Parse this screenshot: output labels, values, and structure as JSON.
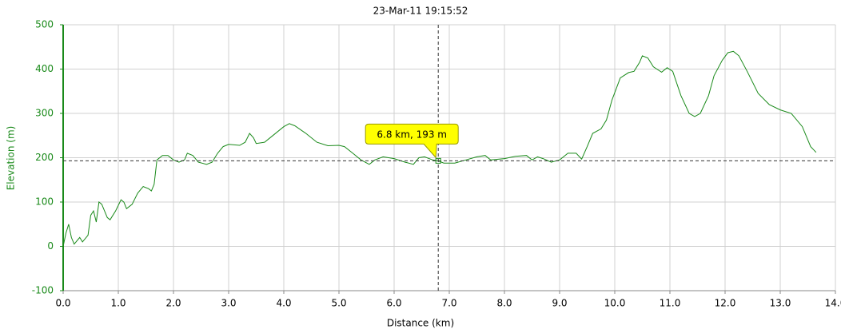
{
  "chart_data": {
    "type": "line",
    "title": "23-Mar-11 19:15:52",
    "x_label": "Distance (km)",
    "y_label": "Elevation (m)",
    "x": [
      0.0,
      0.05,
      0.1,
      0.15,
      0.2,
      0.3,
      0.35,
      0.45,
      0.5,
      0.55,
      0.6,
      0.65,
      0.7,
      0.8,
      0.85,
      0.95,
      1.05,
      1.1,
      1.15,
      1.25,
      1.35,
      1.45,
      1.55,
      1.6,
      1.65,
      1.7,
      1.8,
      1.9,
      2.0,
      2.1,
      2.2,
      2.25,
      2.35,
      2.45,
      2.6,
      2.7,
      2.8,
      2.9,
      3.0,
      3.2,
      3.3,
      3.38,
      3.45,
      3.5,
      3.65,
      3.8,
      4.0,
      4.1,
      4.2,
      4.4,
      4.6,
      4.8,
      5.0,
      5.1,
      5.25,
      5.4,
      5.55,
      5.65,
      5.8,
      6.0,
      6.2,
      6.35,
      6.45,
      6.55,
      6.7,
      6.8,
      6.9,
      7.1,
      7.3,
      7.5,
      7.65,
      7.75,
      8.0,
      8.2,
      8.4,
      8.5,
      8.6,
      8.7,
      8.85,
      9.0,
      9.15,
      9.3,
      9.4,
      9.5,
      9.6,
      9.75,
      9.85,
      9.95,
      10.1,
      10.25,
      10.35,
      10.45,
      10.5,
      10.6,
      10.7,
      10.85,
      10.95,
      11.05,
      11.2,
      11.35,
      11.45,
      11.55,
      11.7,
      11.8,
      11.95,
      12.05,
      12.15,
      12.25,
      12.4,
      12.6,
      12.8,
      13.0,
      13.2,
      13.4,
      13.55,
      13.65
    ],
    "series": [
      {
        "name": "Elevation",
        "color": "#1a8a1a",
        "values": [
          0,
          30,
          50,
          20,
          5,
          20,
          10,
          25,
          70,
          80,
          55,
          100,
          95,
          65,
          60,
          80,
          105,
          100,
          85,
          95,
          120,
          135,
          130,
          125,
          140,
          195,
          205,
          205,
          195,
          190,
          195,
          210,
          205,
          190,
          185,
          190,
          210,
          225,
          230,
          228,
          235,
          255,
          245,
          232,
          235,
          250,
          270,
          277,
          272,
          255,
          235,
          227,
          228,
          225,
          210,
          195,
          185,
          195,
          202,
          198,
          190,
          185,
          200,
          202,
          195,
          193,
          188,
          188,
          195,
          202,
          205,
          195,
          198,
          203,
          205,
          195,
          202,
          198,
          190,
          195,
          210,
          210,
          197,
          225,
          255,
          265,
          285,
          330,
          380,
          392,
          395,
          415,
          430,
          425,
          405,
          393,
          403,
          395,
          340,
          300,
          293,
          300,
          340,
          385,
          420,
          437,
          440,
          430,
          395,
          345,
          320,
          308,
          300,
          270,
          225,
          212
        ]
      }
    ],
    "crosshair": {
      "x": 6.8,
      "y": 193,
      "label": "6.8 km, 193 m"
    },
    "xlim": [
      0,
      14
    ],
    "ylim": [
      -100,
      500
    ],
    "xticks": [
      {
        "value": 0,
        "label": "0.0"
      },
      {
        "value": 1,
        "label": "1.0"
      },
      {
        "value": 2,
        "label": "2.0"
      },
      {
        "value": 3,
        "label": "3.0"
      },
      {
        "value": 4,
        "label": "4.0"
      },
      {
        "value": 5,
        "label": "5.0"
      },
      {
        "value": 6,
        "label": "6.0"
      },
      {
        "value": 7,
        "label": "7.0"
      },
      {
        "value": 8,
        "label": "8.0"
      },
      {
        "value": 9,
        "label": "9.0"
      },
      {
        "value": 10,
        "label": "10.0"
      },
      {
        "value": 11,
        "label": "11.0"
      },
      {
        "value": 12,
        "label": "12.0"
      },
      {
        "value": 13,
        "label": "13.0"
      },
      {
        "value": 14,
        "label": "14.0"
      }
    ],
    "yticks": [
      -100,
      0,
      100,
      200,
      300,
      400,
      500
    ],
    "grid": true
  }
}
